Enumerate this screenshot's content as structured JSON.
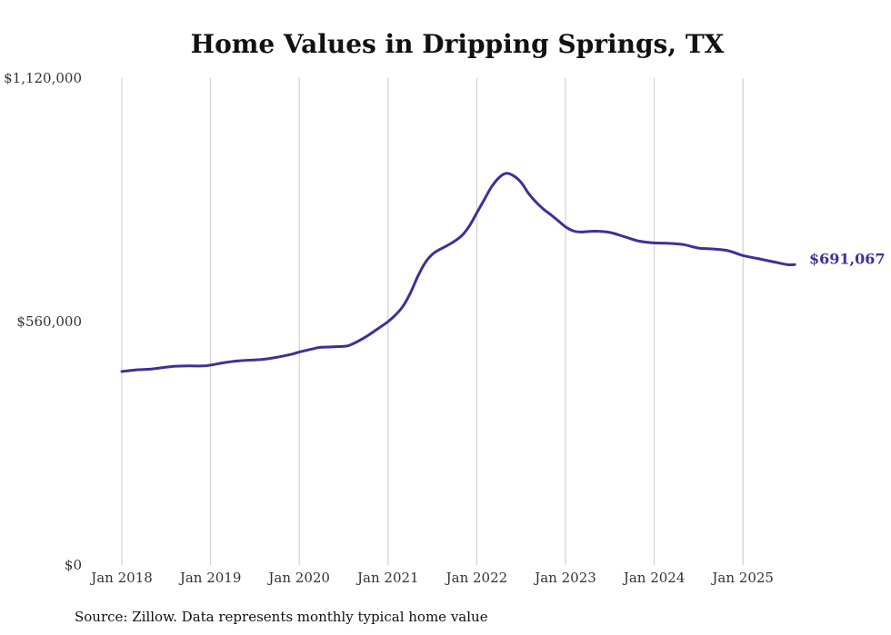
{
  "chart_data": {
    "type": "line",
    "title": "Home Values in Dripping Springs, TX",
    "source": "Source: Zillow. Data represents monthly typical home value",
    "xlabel": "",
    "ylabel": "",
    "ylim": [
      0,
      1120000
    ],
    "yticks": [
      {
        "value": 0,
        "label": "$0"
      },
      {
        "value": 560000,
        "label": "$560,000"
      },
      {
        "value": 1120000,
        "label": "$1,120,000"
      }
    ],
    "xticks": [
      {
        "value": 2018.0,
        "label": "Jan 2018"
      },
      {
        "value": 2019.0,
        "label": "Jan 2019"
      },
      {
        "value": 2020.0,
        "label": "Jan 2020"
      },
      {
        "value": 2021.0,
        "label": "Jan 2021"
      },
      {
        "value": 2022.0,
        "label": "Jan 2022"
      },
      {
        "value": 2023.0,
        "label": "Jan 2023"
      },
      {
        "value": 2024.0,
        "label": "Jan 2024"
      },
      {
        "value": 2025.0,
        "label": "Jan 2025"
      }
    ],
    "grid": "vertical",
    "line_color": "#3b3296",
    "end_label": "$691,067",
    "series": [
      {
        "x": [
          2018.0,
          2018.167,
          2018.333,
          2018.583,
          2018.75,
          2018.917,
          2019.0,
          2019.167,
          2019.333,
          2019.583,
          2019.75,
          2019.917,
          2020.0,
          2020.167,
          2020.25,
          2020.5,
          2020.583,
          2020.75,
          2020.917,
          2021.0,
          2021.083,
          2021.167,
          2021.25,
          2021.333,
          2021.417,
          2021.5,
          2021.583,
          2021.667,
          2021.75,
          2021.833,
          2021.917,
          2022.0,
          2022.083,
          2022.167,
          2022.25,
          2022.333,
          2022.417,
          2022.5,
          2022.583,
          2022.667,
          2022.75,
          2022.833,
          2022.917,
          2023.0,
          2023.083,
          2023.167,
          2023.333,
          2023.5,
          2023.667,
          2023.833,
          2024.0,
          2024.167,
          2024.333,
          2024.5,
          2024.667,
          2024.833,
          2025.0,
          2025.167,
          2025.333,
          2025.5,
          2025.583
        ],
        "y": [
          445000,
          449000,
          451000,
          457000,
          458000,
          458000,
          460000,
          466000,
          470000,
          473000,
          478000,
          485000,
          490000,
          498000,
          501000,
          503000,
          507000,
          525000,
          548000,
          560000,
          575000,
          595000,
          625000,
          663000,
          695000,
          715000,
          726000,
          735000,
          745000,
          758000,
          780000,
          810000,
          840000,
          870000,
          891000,
          901000,
          895000,
          880000,
          855000,
          835000,
          819000,
          806000,
          792000,
          778000,
          769000,
          766000,
          768000,
          765000,
          755000,
          745000,
          741000,
          740000,
          737000,
          729000,
          727000,
          723000,
          712000,
          705000,
          698000,
          691000,
          691067
        ]
      }
    ]
  }
}
